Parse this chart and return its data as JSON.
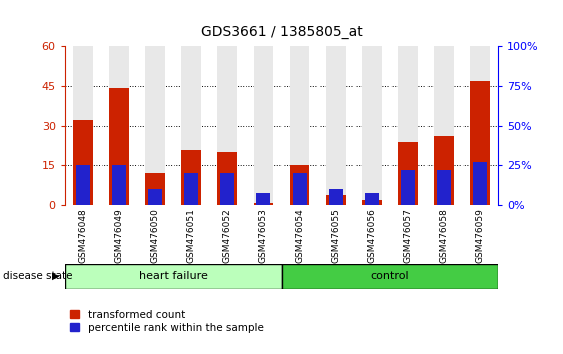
{
  "title": "GDS3661 / 1385805_at",
  "samples": [
    "GSM476048",
    "GSM476049",
    "GSM476050",
    "GSM476051",
    "GSM476052",
    "GSM476053",
    "GSM476054",
    "GSM476055",
    "GSM476056",
    "GSM476057",
    "GSM476058",
    "GSM476059"
  ],
  "red_values": [
    32,
    44,
    12,
    21,
    20,
    1,
    15,
    4,
    2,
    24,
    26,
    47
  ],
  "blue_values_pct": [
    25,
    25,
    10,
    20,
    20,
    8,
    20,
    10,
    8,
    22,
    22,
    27
  ],
  "red_color": "#cc2200",
  "blue_color": "#2222cc",
  "plot_bg": "#e8e8e8",
  "left_ylim": [
    0,
    60
  ],
  "right_ylim": [
    0,
    100
  ],
  "left_yticks": [
    0,
    15,
    30,
    45,
    60
  ],
  "right_yticks": [
    0,
    25,
    50,
    75,
    100
  ],
  "heart_failure_indices": [
    0,
    1,
    2,
    3,
    4,
    5
  ],
  "control_indices": [
    6,
    7,
    8,
    9,
    10,
    11
  ],
  "heart_failure_color": "#bbffbb",
  "control_color": "#44cc44",
  "group_label_hf": "heart failure",
  "group_label_ctrl": "control",
  "disease_state_label": "disease state",
  "legend_red": "transformed count",
  "legend_blue": "percentile rank within the sample",
  "bar_width": 0.55,
  "figure_width": 5.63,
  "figure_height": 3.54,
  "dpi": 100
}
